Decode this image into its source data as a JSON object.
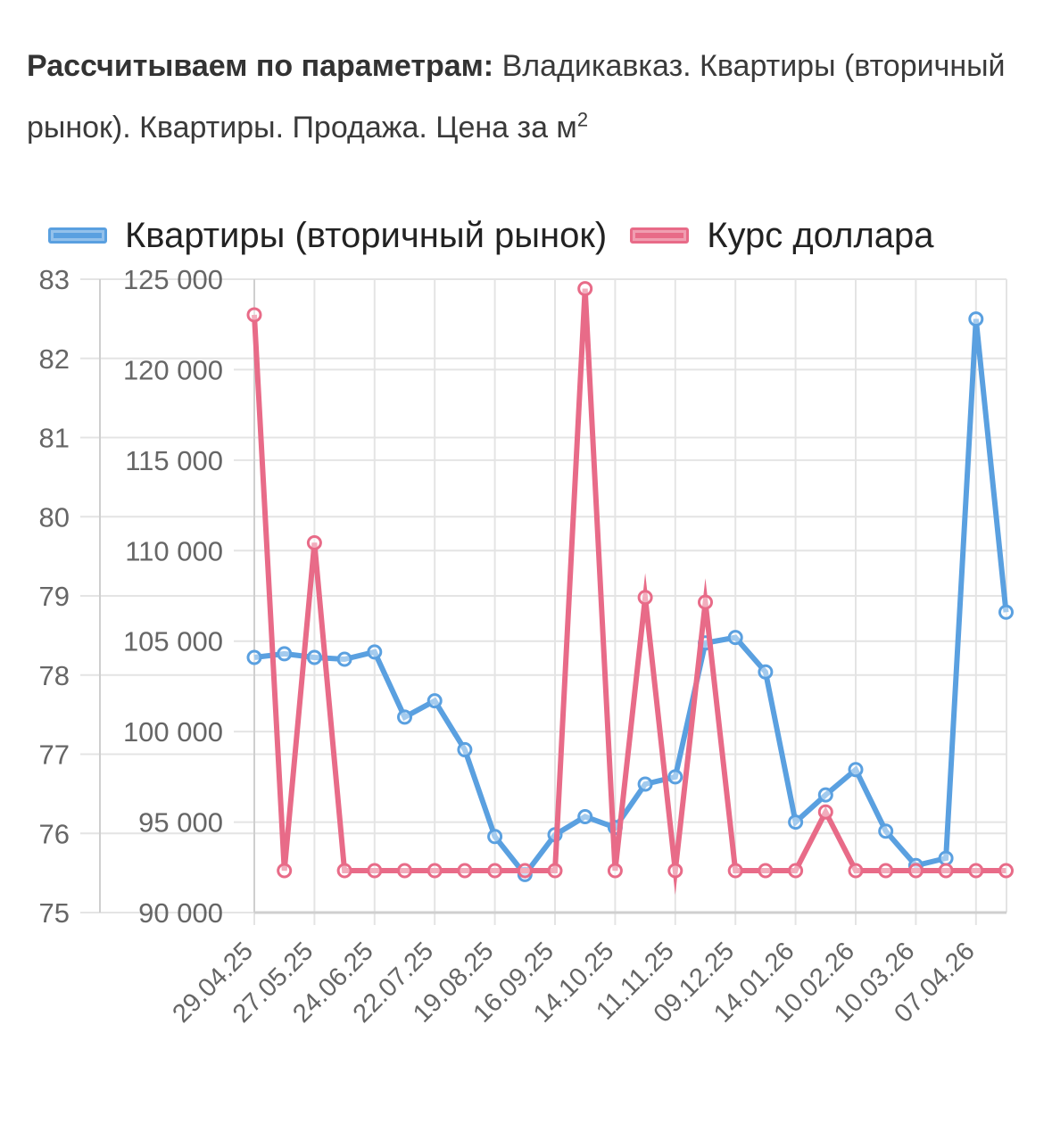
{
  "params": {
    "label": "Рассчитываем по параметрам:",
    "text": "Владикавказ. Квартиры (вторичный рынок). Квартиры. Продажа. Цена за м",
    "sup": "2"
  },
  "colors": {
    "flats": "#5aa0e0",
    "dollar": "#e86b88",
    "grid": "#e4e4e4",
    "axis": "#cfcfcf"
  },
  "chart_data": {
    "type": "line",
    "title": "",
    "legend_position": "top",
    "grid": true,
    "x": [
      "29.04.25",
      "13.05.25",
      "27.05.25",
      "10.06.25",
      "24.06.25",
      "08.07.25",
      "22.07.25",
      "05.08.25",
      "19.08.25",
      "02.09.25",
      "16.09.25",
      "30.09.25",
      "14.10.25",
      "28.10.25",
      "11.11.25",
      "25.11.25",
      "09.12.25",
      "23.12.25",
      "14.01.26",
      "28.01.26",
      "10.02.26",
      "24.02.26",
      "10.03.26",
      "24.03.26",
      "07.04.26",
      "21.04.26"
    ],
    "x_tick_labels": [
      "29.04.25",
      "27.05.25",
      "24.06.25",
      "22.07.25",
      "19.08.25",
      "16.09.25",
      "14.10.25",
      "11.11.25",
      "09.12.25",
      "14.01.26",
      "10.02.26",
      "10.03.26",
      "07.04.26"
    ],
    "y_left": {
      "ticks": [
        "75",
        "76",
        "77",
        "78",
        "79",
        "80",
        "81",
        "82",
        "83"
      ],
      "range": [
        75,
        83
      ]
    },
    "y_right": {
      "ticks": [
        "90 000",
        "95 000",
        "100 000",
        "105 000",
        "110 000",
        "115 000",
        "120 000",
        "125 000"
      ],
      "range": [
        90000,
        125000
      ]
    },
    "series": [
      {
        "name": "Квартиры (вторичный рынок)",
        "axis": "right",
        "color": "#5aa0e0",
        "values": [
          104100,
          104300,
          104100,
          104000,
          104400,
          100800,
          101700,
          99000,
          94200,
          92100,
          94300,
          95300,
          94700,
          97100,
          97500,
          104900,
          105200,
          103300,
          95000,
          96500,
          97900,
          94500,
          92600,
          93000,
          122800,
          106600
        ]
      },
      {
        "name": "Курс доллара",
        "axis": "left",
        "color": "#e86b88",
        "values": [
          82.55,
          75.53,
          79.67,
          75.53,
          75.53,
          75.53,
          75.53,
          75.53,
          75.53,
          75.53,
          75.53,
          82.88,
          75.53,
          78.98,
          75.53,
          78.92,
          75.53,
          75.53,
          75.53,
          76.27,
          75.53,
          75.53,
          75.53,
          75.53,
          75.53,
          75.53
        ]
      }
    ]
  }
}
